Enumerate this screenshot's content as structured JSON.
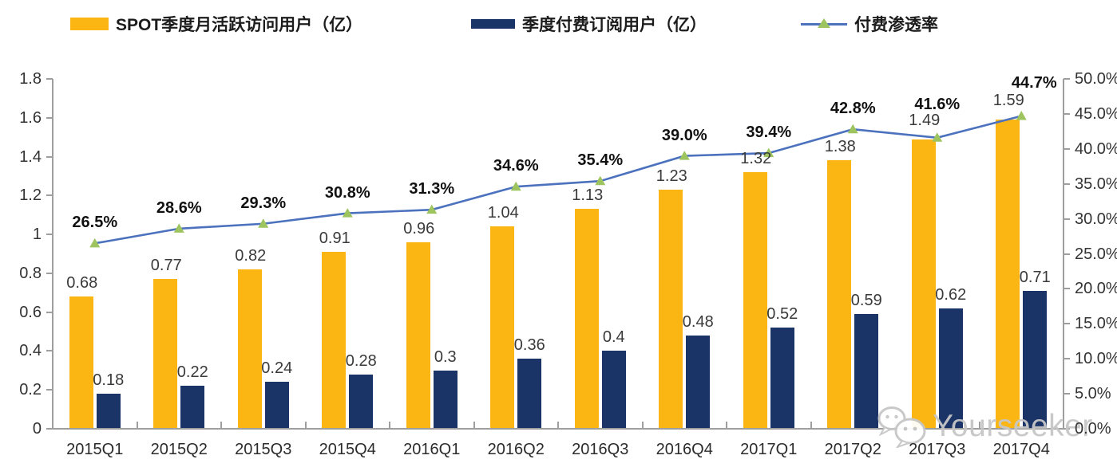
{
  "legend": [
    {
      "label": "SPOT季度月活跃访问用户（亿）",
      "swatch": "bar",
      "color": "#FBB614"
    },
    {
      "label": "季度付费订阅用户（亿）",
      "swatch": "bar",
      "color": "#1A3468"
    },
    {
      "label": "付费渗透率",
      "swatch": "line-triangle-marker",
      "line_color": "#4C72BE",
      "marker_color": "#9DC45F"
    }
  ],
  "chart_data": {
    "type": "bar+line combo",
    "title": "",
    "categories": [
      "2015Q1",
      "2015Q2",
      "2015Q3",
      "2015Q4",
      "2016Q1",
      "2016Q2",
      "2016Q3",
      "2016Q4",
      "2017Q1",
      "2017Q2",
      "2017Q3",
      "2017Q4"
    ],
    "series": [
      {
        "name": "SPOT季度月活跃访问用户（亿）",
        "type": "bar",
        "axis": "left",
        "color": "#FBB614",
        "values": [
          0.68,
          0.77,
          0.82,
          0.91,
          0.96,
          1.04,
          1.13,
          1.23,
          1.32,
          1.38,
          1.49,
          1.59
        ],
        "labels": [
          "0.68",
          "0.77",
          "0.82",
          "0.91",
          "0.96",
          "1.04",
          "1.13",
          "1.23",
          "1.32",
          "1.38",
          "1.49",
          "1.59"
        ]
      },
      {
        "name": "季度付费订阅用户（亿）",
        "type": "bar",
        "axis": "left",
        "color": "#1A3468",
        "values": [
          0.18,
          0.22,
          0.24,
          0.28,
          0.3,
          0.36,
          0.4,
          0.48,
          0.52,
          0.59,
          0.62,
          0.71
        ],
        "labels": [
          "0.18",
          "0.22",
          "0.24",
          "0.28",
          "0.3",
          "0.36",
          "0.4",
          "0.48",
          "0.52",
          "0.59",
          "0.62",
          "0.71"
        ]
      },
      {
        "name": "付费渗透率",
        "type": "line",
        "axis": "right",
        "color": "#4C72BE",
        "marker": "triangle",
        "marker_color": "#9DC45F",
        "values": [
          26.5,
          28.6,
          29.3,
          30.8,
          31.3,
          34.6,
          35.4,
          39.0,
          39.4,
          42.8,
          41.6,
          44.7
        ],
        "labels": [
          "26.5%",
          "28.6%",
          "29.3%",
          "30.8%",
          "31.3%",
          "34.6%",
          "35.4%",
          "39.0%",
          "39.4%",
          "42.8%",
          "41.6%",
          "44.7%"
        ]
      }
    ],
    "axes": {
      "left": {
        "min": 0,
        "max": 1.8,
        "step": 0.2,
        "ticks": [
          "0",
          "0.2",
          "0.4",
          "0.6",
          "0.8",
          "1",
          "1.2",
          "1.4",
          "1.6",
          "1.8"
        ]
      },
      "right": {
        "min": 0,
        "max": 50,
        "step": 5,
        "ticks": [
          "0.0%",
          "5.0%",
          "10.0%",
          "15.0%",
          "20.0%",
          "25.0%",
          "30.0%",
          "35.0%",
          "40.0%",
          "45.0%",
          "50.0%"
        ]
      }
    },
    "grid": false,
    "legend_position": "top"
  },
  "watermark": {
    "text": "Yourseeker",
    "icon": "wechat-icon"
  }
}
